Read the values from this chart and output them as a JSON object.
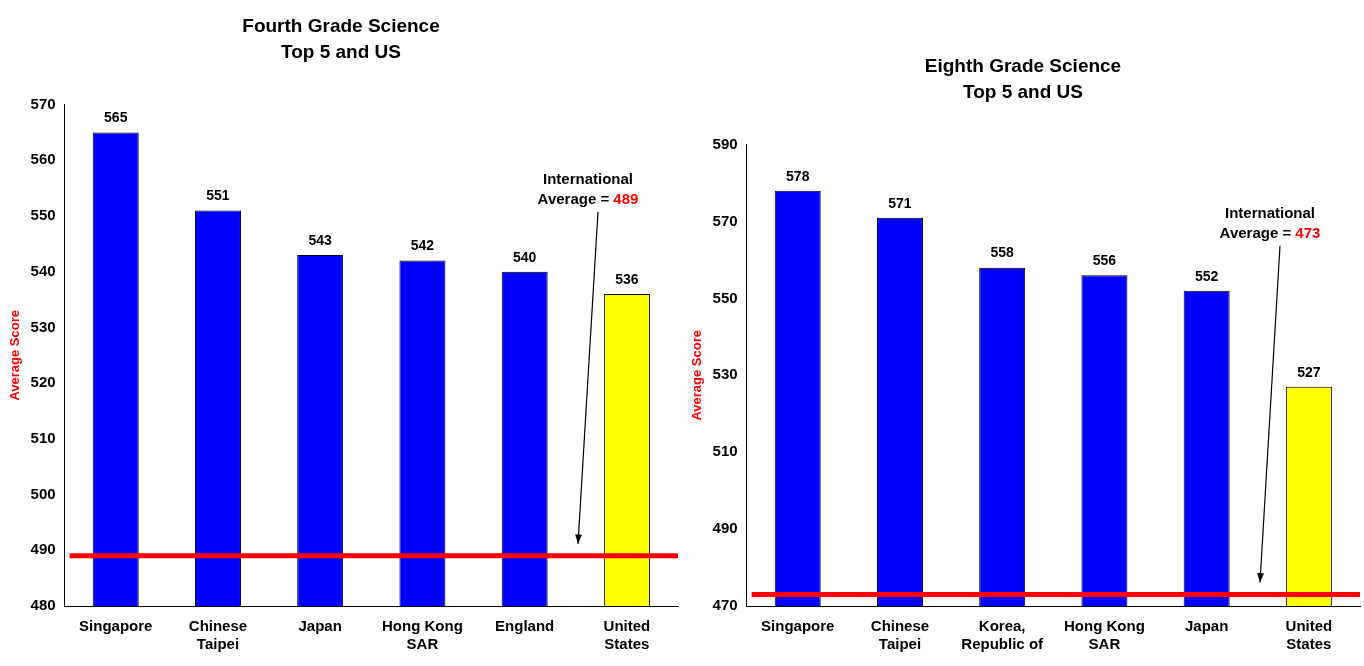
{
  "chart_data": [
    {
      "type": "bar",
      "title": "Fourth Grade Science",
      "subtitle": "Top 5 and US",
      "ylabel": "Average Score",
      "categories": [
        "Singapore",
        "Chinese Taipei",
        "Japan",
        "Hong Kong SAR",
        "England",
        "United States"
      ],
      "values": [
        565,
        551,
        543,
        542,
        540,
        536
      ],
      "colors": [
        "#0000ff",
        "#0000ff",
        "#0000ff",
        "#0000ff",
        "#0000ff",
        "#ffff00"
      ],
      "ylim": [
        480,
        570
      ],
      "yticks": [
        480,
        490,
        500,
        510,
        520,
        530,
        540,
        550,
        560,
        570
      ],
      "grid": false,
      "legend": false,
      "data_labels": true,
      "ref_lines": [
        {
          "axis": "y",
          "value": 489,
          "color": "#ff0000"
        }
      ],
      "annotations": [
        "International Average = 489"
      ]
    },
    {
      "type": "bar",
      "title": "Eighth Grade Science",
      "subtitle": "Top 5 and US",
      "ylabel": "Average Score",
      "categories": [
        "Singapore",
        "Chinese Taipei",
        "Korea, Republic of",
        "Hong Kong SAR",
        "Japan",
        "United States"
      ],
      "values": [
        578,
        571,
        558,
        556,
        552,
        527
      ],
      "colors": [
        "#0000ff",
        "#0000ff",
        "#0000ff",
        "#0000ff",
        "#0000ff",
        "#ffff00"
      ],
      "ylim": [
        470,
        590
      ],
      "yticks": [
        470,
        490,
        510,
        530,
        550,
        570,
        590
      ],
      "grid": false,
      "legend": false,
      "data_labels": true,
      "ref_lines": [
        {
          "axis": "y",
          "value": 473,
          "color": "#ff0000"
        }
      ],
      "annotations": [
        "International Average = 473"
      ]
    }
  ]
}
